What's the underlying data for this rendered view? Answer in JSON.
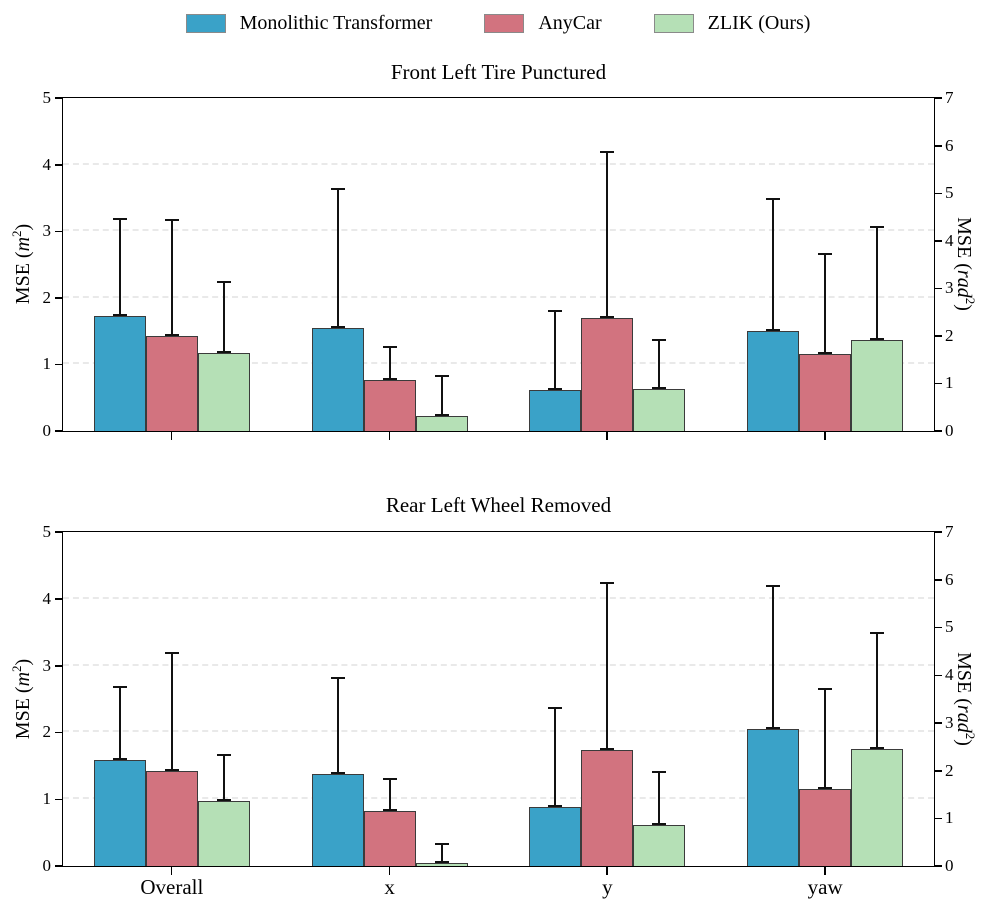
{
  "legend": {
    "items": [
      {
        "label": "Monolithic Transformer",
        "color": "#3AA2C8"
      },
      {
        "label": "AnyCar",
        "color": "#D2737F"
      },
      {
        "label": "ZLIK (Ours)",
        "color": "#B5E0B6"
      }
    ]
  },
  "axis_labels": {
    "left": {
      "prefix": "MSE (",
      "sym": "m",
      "sup": "2",
      "suffix": ")"
    },
    "right": {
      "prefix": "MSE (",
      "sym": "rad",
      "sup": "2",
      "suffix": ")"
    }
  },
  "colors": {
    "bar_edge": "#3b3b3b",
    "error_bar": "#111111",
    "grid": "#e9e9e9",
    "spine": "#000000"
  },
  "chart_data": [
    {
      "type": "bar",
      "title": "Front Left Tire Punctured",
      "categories": [
        "Overall",
        "x",
        "y",
        "yaw"
      ],
      "series": [
        {
          "name": "Monolithic Transformer",
          "color": "#3AA2C8",
          "values": [
            1.72,
            1.55,
            0.62,
            1.5
          ],
          "errors_upper": [
            1.48,
            2.1,
            1.2,
            2.0
          ]
        },
        {
          "name": "AnyCar",
          "color": "#D2737F",
          "values": [
            1.43,
            0.77,
            1.7,
            1.16
          ],
          "errors_upper": [
            1.75,
            0.5,
            2.5,
            1.51
          ]
        },
        {
          "name": "ZLIK (Ours)",
          "color": "#B5E0B6",
          "values": [
            1.17,
            0.23,
            0.63,
            1.36
          ],
          "errors_upper": [
            1.08,
            0.61,
            0.75,
            1.72
          ]
        }
      ],
      "ylabel_left": "MSE (m^2)",
      "ylabel_right": "MSE (rad^2)",
      "ylim_left": [
        0,
        5
      ],
      "ylim_right": [
        0,
        7
      ],
      "ytick_step": 1,
      "grid": "horizontal-dashed",
      "legend_position": "top-center",
      "show_x_labels": false
    },
    {
      "type": "bar",
      "title": "Rear Left Wheel Removed",
      "categories": [
        "Overall",
        "x",
        "y",
        "yaw"
      ],
      "series": [
        {
          "name": "Monolithic Transformer",
          "color": "#3AA2C8",
          "values": [
            1.58,
            1.38,
            0.88,
            2.05
          ],
          "errors_upper": [
            1.12,
            1.45,
            1.5,
            2.15
          ]
        },
        {
          "name": "AnyCar",
          "color": "#D2737F",
          "values": [
            1.42,
            0.82,
            1.73,
            1.16
          ],
          "errors_upper": [
            1.78,
            0.5,
            2.52,
            1.51
          ]
        },
        {
          "name": "ZLIK (Ours)",
          "color": "#B5E0B6",
          "values": [
            0.97,
            0.05,
            0.61,
            1.75
          ],
          "errors_upper": [
            0.71,
            0.29,
            0.81,
            1.75
          ]
        }
      ],
      "ylabel_left": "MSE (m^2)",
      "ylabel_right": "MSE (rad^2)",
      "ylim_left": [
        0,
        5
      ],
      "ylim_right": [
        0,
        7
      ],
      "ytick_step": 1,
      "grid": "horizontal-dashed",
      "show_x_labels": true
    }
  ]
}
